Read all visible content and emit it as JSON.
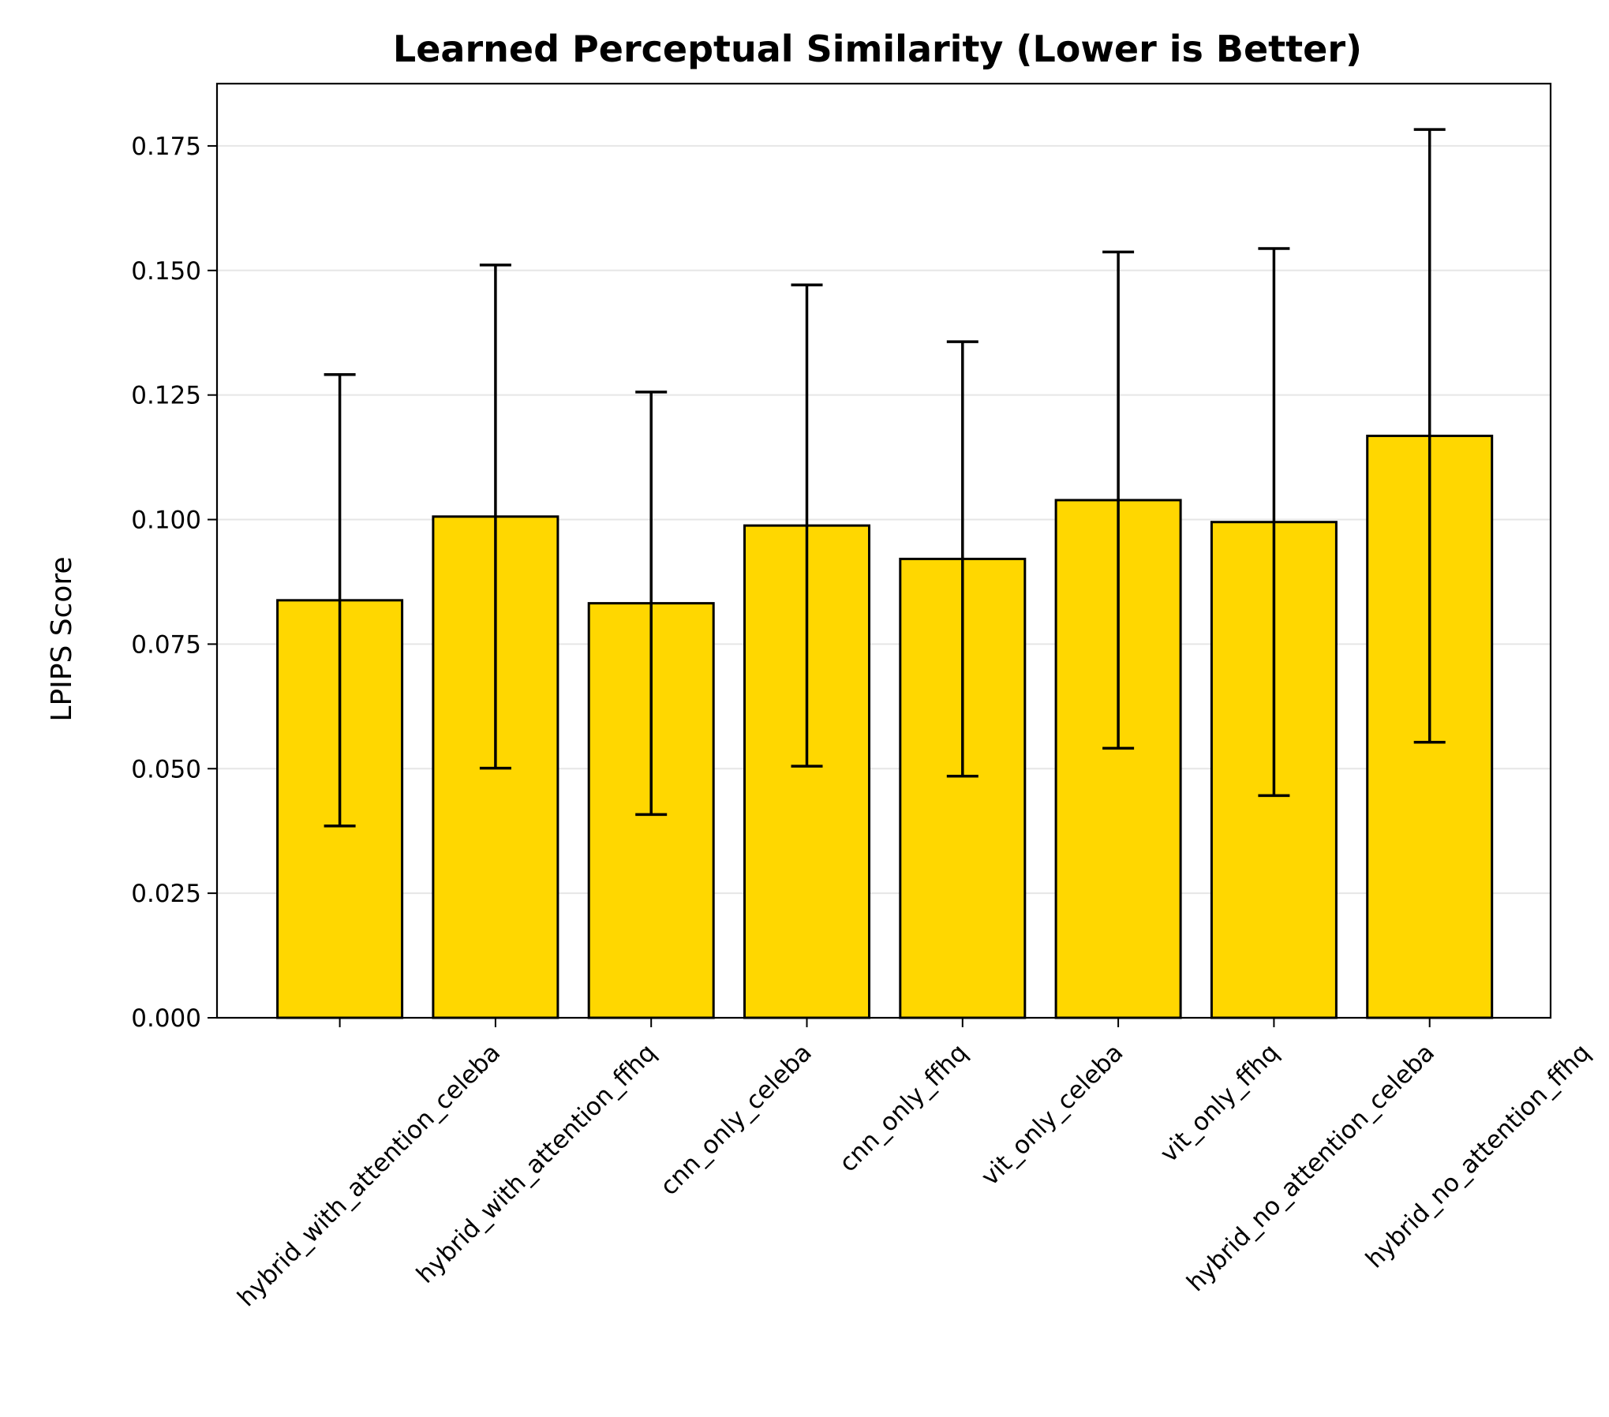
{
  "colors": {
    "bar_fill": "#FFD700",
    "bar_edge": "#000000",
    "grid": "#e6e6e6",
    "errorbar": "#000000"
  },
  "chart_data": {
    "type": "bar",
    "title": "Learned Perceptual Similarity (Lower is Better)",
    "xlabel": "",
    "ylabel": "LPIPS Score",
    "ylim": [
      0,
      0.1875
    ],
    "yticks": [
      0.0,
      0.025,
      0.05,
      0.075,
      0.1,
      0.125,
      0.15,
      0.175
    ],
    "ytick_labels": [
      "0.000",
      "0.025",
      "0.050",
      "0.075",
      "0.100",
      "0.125",
      "0.150",
      "0.175"
    ],
    "grid": "y",
    "categories": [
      "hybrid_with_attention_celeba",
      "hybrid_with_attention_ffhq",
      "cnn_only_celeba",
      "cnn_only_ffhq",
      "vit_only_celeba",
      "vit_only_ffhq",
      "hybrid_no_attention_celeba",
      "hybrid_no_attention_ffhq"
    ],
    "values": [
      0.0838,
      0.1006,
      0.0832,
      0.0988,
      0.0921,
      0.1039,
      0.0995,
      0.1168
    ],
    "errors": [
      0.0453,
      0.0505,
      0.0424,
      0.0483,
      0.0436,
      0.0498,
      0.0549,
      0.0615
    ]
  }
}
